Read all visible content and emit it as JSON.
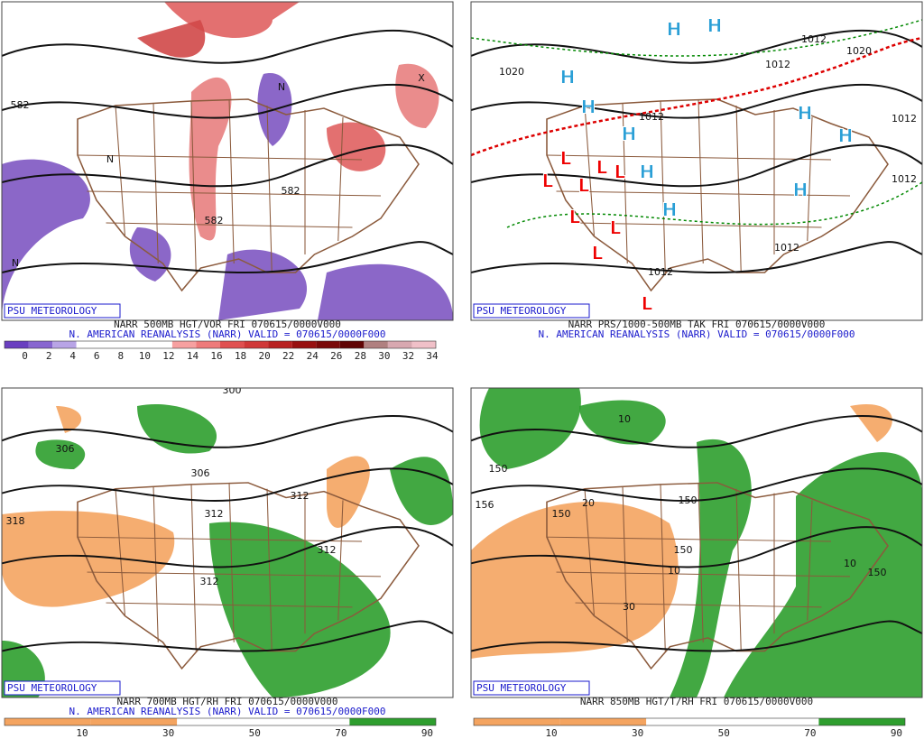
{
  "branding": "PSU METEOROLOGY",
  "panels": [
    {
      "title": "NARR 500MB HGT/VOR FRI 070615/0000V000",
      "subtitle": "N. AMERICAN REANALYSIS (NARR) VALID = 070615/0000F000",
      "colorbar": {
        "labels": [
          0,
          2,
          4,
          6,
          8,
          10,
          12,
          14,
          16,
          18,
          20,
          22,
          24,
          26,
          28,
          30,
          32,
          34
        ],
        "colors": [
          "#6a3fc0",
          "#8866d0",
          "#b8a4e6",
          "#ffffff",
          "#ffffff",
          "#ffffff",
          "#ffffff",
          "#f6a0a0",
          "#ee7a7a",
          "#e05050",
          "#d03838",
          "#b82020",
          "#981010",
          "#7a0808",
          "#600404",
          "#b08080",
          "#d8a8b0",
          "#f0c0c8"
        ]
      },
      "map_labels": [
        "582",
        "582",
        "582",
        "N",
        "N",
        "N",
        "X"
      ]
    },
    {
      "title": "NARR PRS/1000-500MB TAK FRI 070615/0000V000",
      "subtitle": "N. AMERICAN REANALYSIS (NARR) VALID = 070615/0000F000",
      "map_labels": [
        "1020",
        "1012",
        "1012",
        "1012",
        "1012",
        "1012",
        "1012",
        "1020",
        "1012",
        "H",
        "H",
        "H",
        "H",
        "H",
        "H",
        "H",
        "H",
        "H",
        "H",
        "L",
        "L",
        "L",
        "L",
        "L",
        "L",
        "L",
        "L",
        "L"
      ]
    },
    {
      "title": "NARR 700MB HGT/RH FRI 070615/0000V000",
      "subtitle": "N. AMERICAN REANALYSIS (NARR) VALID = 070615/0000F000",
      "colorbar": {
        "labels": [
          10,
          30,
          50,
          70,
          90
        ],
        "colors": [
          "#f4a460",
          "#f4a460",
          "#ffffff",
          "#ffffff",
          "#2e9e2e"
        ]
      },
      "map_labels": [
        "300",
        "306",
        "306",
        "312",
        "312",
        "312",
        "318",
        "312"
      ]
    },
    {
      "title": "NARR 850MB HGT/T/RH FRI 070615/0000V000",
      "subtitle": "",
      "colorbar": {
        "labels": [
          10,
          30,
          50,
          70,
          90
        ],
        "colors": [
          "#f4a460",
          "#f4a460",
          "#ffffff",
          "#ffffff",
          "#2e9e2e"
        ]
      },
      "map_labels": [
        "150",
        "156",
        "150",
        "150",
        "150",
        "150",
        "10",
        "20",
        "30",
        "10",
        "10"
      ]
    }
  ]
}
